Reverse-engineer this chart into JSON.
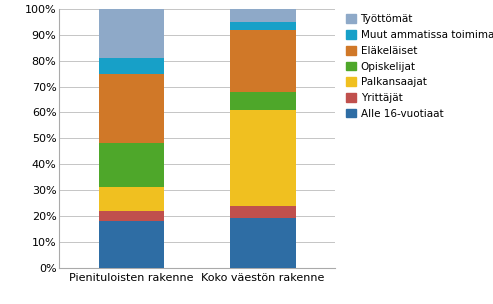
{
  "categories": [
    "Pienituloisten rakenne",
    "Koko väestön rakenne"
  ],
  "series": [
    {
      "label": "Alle 16-vuotiaat",
      "color": "#2E6DA4",
      "values": [
        18,
        19
      ]
    },
    {
      "label": "Yrittäjät",
      "color": "#C0504D",
      "values": [
        4,
        5
      ]
    },
    {
      "label": "Palkansaajat",
      "color": "#F0C020",
      "values": [
        9,
        37
      ]
    },
    {
      "label": "Opiskelijat",
      "color": "#4EA72A",
      "values": [
        17,
        7
      ]
    },
    {
      "label": "Eläkeläiset",
      "color": "#D07828",
      "values": [
        27,
        24
      ]
    },
    {
      "label": "Muut ammatissa toimimattomat",
      "color": "#17A0C8",
      "values": [
        6,
        3
      ]
    },
    {
      "label": "Työttömät",
      "color": "#8EA9C8",
      "values": [
        19,
        5
      ]
    }
  ],
  "ylim": [
    0,
    100
  ],
  "yticks": [
    0,
    10,
    20,
    30,
    40,
    50,
    60,
    70,
    80,
    90,
    100
  ],
  "bar_width": 0.5,
  "background_color": "#FFFFFF",
  "grid_color": "#BBBBBB",
  "legend_fontsize": 7.5,
  "tick_fontsize": 8,
  "xlabel_fontsize": 8,
  "figsize": [
    4.93,
    3.04
  ],
  "dpi": 100
}
